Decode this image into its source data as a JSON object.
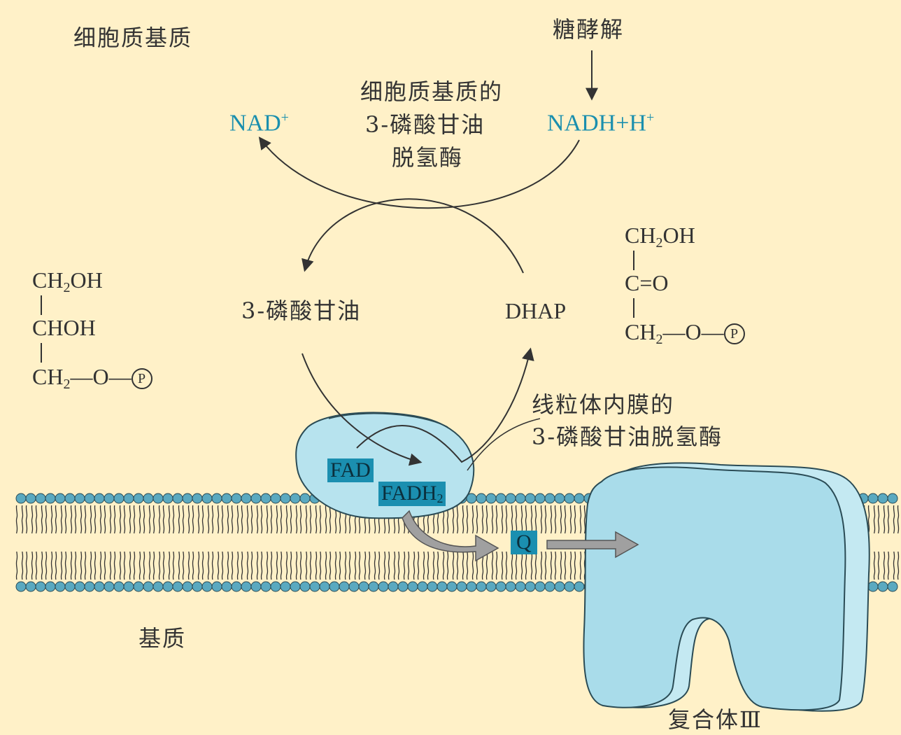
{
  "labels": {
    "cytosol_matrix": "细胞质基质",
    "glycolysis": "糖酵解",
    "cyto_enzyme": [
      "细胞质基质的",
      "3-磷酸甘油",
      "脱氢酶"
    ],
    "nad_plus": "NAD",
    "nadh_h": "NADH+H",
    "plus_sign": "+",
    "g3p": "3-磷酸甘油",
    "dhap": "DHAP",
    "mito_enzyme": [
      "线粒体内膜的",
      "3-磷酸甘油脱氢酶"
    ],
    "fad": "FAD",
    "fadh2_base": "FADH",
    "fadh2_sub": "2",
    "q": "Q",
    "matrix": "基质",
    "complex3": "复合体Ⅲ"
  },
  "g3p_structure": {
    "line1": "CH",
    "line1_sub": "2",
    "line1_tail": "OH",
    "line2": "CHOH",
    "line3": "CH",
    "line3_sub": "2",
    "line3_tail": "—O—",
    "phosphate": "P"
  },
  "dhap_structure": {
    "line1": "CH",
    "line1_sub": "2",
    "line1_tail": "OH",
    "line2": "C=O",
    "line3": "CH",
    "line3_sub": "2",
    "line3_tail": "—O—",
    "phosphate": "P"
  },
  "colors": {
    "background": "#fff1c8",
    "teal_text": "#1a8fae",
    "protein_fill": "#b7e3ee",
    "protein_stroke": "#2a4b55",
    "lipid_head": "#5aa9c0",
    "highlight_box": "#1b8fb0"
  }
}
